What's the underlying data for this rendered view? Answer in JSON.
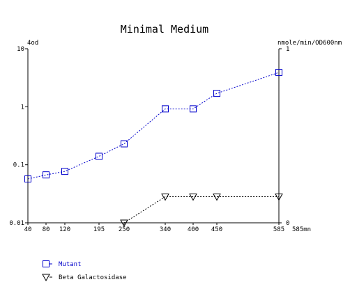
{
  "chart_data": {
    "type": "line",
    "title": "Minimal Medium",
    "left_axis_unit": "4od",
    "right_axis_unit": "nmole/min/OD600nm",
    "x_unit": "585mn",
    "x_ticks": [
      "40",
      "80",
      "120",
      "195",
      "250",
      "340",
      "400",
      "450",
      "585"
    ],
    "x_range": [
      40,
      585
    ],
    "left_ylim": [
      0.01,
      10
    ],
    "left_scale": "log",
    "left_ticks": [
      "10",
      "1",
      "0.1",
      "0.01"
    ],
    "right_ylim": [
      0,
      1
    ],
    "right_ticks": [
      "1",
      "0"
    ],
    "grid": false,
    "legend_position": "bottom-left",
    "series": [
      {
        "name": "Mutant",
        "axis": "left",
        "color": "#0000cc",
        "marker": "square",
        "x": [
          40,
          80,
          120,
          195,
          250,
          340,
          400,
          450,
          585
        ],
        "values": [
          0.057,
          0.067,
          0.077,
          0.14,
          0.23,
          0.92,
          0.92,
          1.7,
          3.9
        ]
      },
      {
        "name": "Beta Galactosidase",
        "axis": "right",
        "color": "#000000",
        "marker": "triangle-down",
        "x": [
          250,
          340,
          400,
          450,
          585
        ],
        "values": [
          0.0,
          0.15,
          0.15,
          0.15,
          0.15
        ]
      }
    ]
  }
}
